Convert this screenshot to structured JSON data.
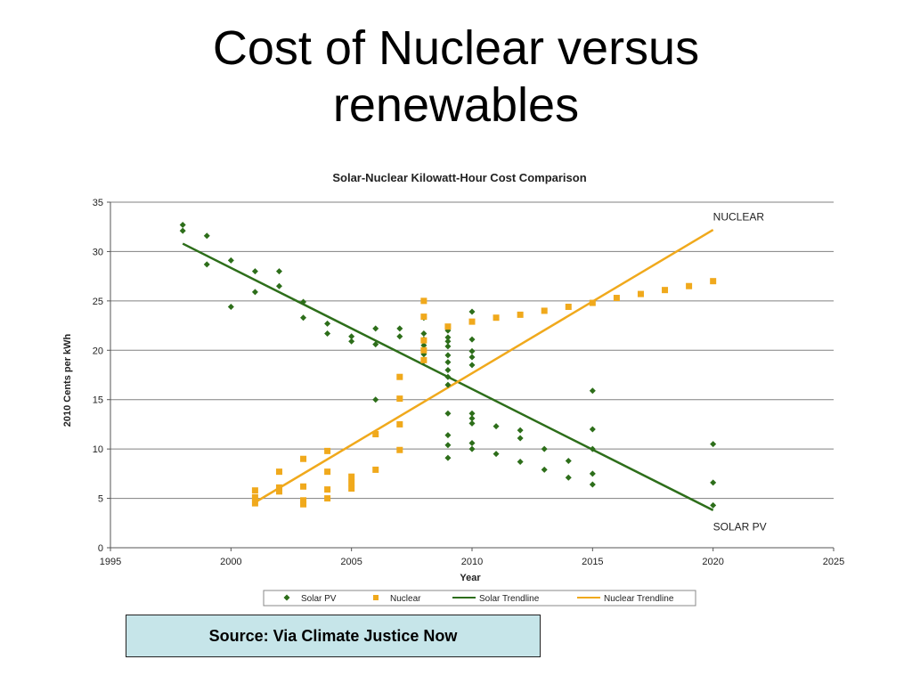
{
  "slide": {
    "title_line1": "Cost of Nuclear versus",
    "title_line2": "renewables",
    "source": "Source: Via Climate Justice Now"
  },
  "colors": {
    "solar": "#2d6e1a",
    "nuclear": "#f0a91c",
    "grid": "#808080",
    "source_box_bg": "#c6e5e9"
  },
  "chart_data": {
    "type": "scatter",
    "title": "Solar-Nuclear Kilowatt-Hour Cost Comparison",
    "xlabel": "Year",
    "ylabel": "2010 Cents per kWh",
    "xlim": [
      1995,
      2025
    ],
    "ylim": [
      0,
      35
    ],
    "xticks": [
      1995,
      2000,
      2005,
      2010,
      2015,
      2020,
      2025
    ],
    "yticks": [
      0,
      5,
      10,
      15,
      20,
      25,
      30,
      35
    ],
    "grid": "horizontal",
    "legend_position": "bottom",
    "annotations": [
      {
        "text": "NUCLEAR",
        "x": 2020,
        "y": 33.5
      },
      {
        "text": "SOLAR PV",
        "x": 2020,
        "y": 2.1
      }
    ],
    "series": [
      {
        "name": "Solar PV",
        "kind": "points",
        "marker": "diamond",
        "color": "#2d6e1a",
        "points": [
          [
            1998,
            32.7
          ],
          [
            1998,
            32.1
          ],
          [
            1999,
            31.6
          ],
          [
            1999,
            28.7
          ],
          [
            2000,
            29.1
          ],
          [
            2000,
            24.4
          ],
          [
            2001,
            28.0
          ],
          [
            2001,
            25.9
          ],
          [
            2002,
            28.0
          ],
          [
            2002,
            26.5
          ],
          [
            2003,
            24.9
          ],
          [
            2003,
            23.3
          ],
          [
            2004,
            22.7
          ],
          [
            2004,
            21.7
          ],
          [
            2005,
            21.4
          ],
          [
            2005,
            20.9
          ],
          [
            2006,
            22.2
          ],
          [
            2006,
            20.6
          ],
          [
            2006,
            15.0
          ],
          [
            2007,
            22.2
          ],
          [
            2007,
            21.4
          ],
          [
            2008,
            23.3
          ],
          [
            2008,
            21.7
          ],
          [
            2008,
            21.1
          ],
          [
            2008,
            20.5
          ],
          [
            2008,
            19.6
          ],
          [
            2008,
            18.9
          ],
          [
            2009,
            22.0
          ],
          [
            2009,
            21.3
          ],
          [
            2009,
            20.9
          ],
          [
            2009,
            20.4
          ],
          [
            2009,
            19.5
          ],
          [
            2009,
            18.8
          ],
          [
            2009,
            18.0
          ],
          [
            2009,
            17.3
          ],
          [
            2009,
            16.5
          ],
          [
            2009,
            13.6
          ],
          [
            2009,
            11.4
          ],
          [
            2009,
            10.4
          ],
          [
            2009,
            9.1
          ],
          [
            2010,
            23.9
          ],
          [
            2010,
            21.1
          ],
          [
            2010,
            19.9
          ],
          [
            2010,
            19.3
          ],
          [
            2010,
            18.5
          ],
          [
            2010,
            13.6
          ],
          [
            2010,
            13.1
          ],
          [
            2010,
            12.6
          ],
          [
            2010,
            10.6
          ],
          [
            2010,
            10.0
          ],
          [
            2011,
            12.3
          ],
          [
            2011,
            9.5
          ],
          [
            2012,
            11.9
          ],
          [
            2012,
            11.1
          ],
          [
            2012,
            8.7
          ],
          [
            2013,
            10.0
          ],
          [
            2013,
            7.9
          ],
          [
            2014,
            8.8
          ],
          [
            2014,
            7.1
          ],
          [
            2015,
            15.9
          ],
          [
            2015,
            12.0
          ],
          [
            2015,
            10.0
          ],
          [
            2015,
            7.5
          ],
          [
            2015,
            6.4
          ],
          [
            2020,
            10.5
          ],
          [
            2020,
            6.6
          ],
          [
            2020,
            4.3
          ]
        ]
      },
      {
        "name": "Nuclear",
        "kind": "points",
        "marker": "square",
        "color": "#f0a91c",
        "points": [
          [
            2001,
            5.8
          ],
          [
            2001,
            5.1
          ],
          [
            2001,
            4.5
          ],
          [
            2002,
            7.7
          ],
          [
            2002,
            6.1
          ],
          [
            2002,
            5.7
          ],
          [
            2003,
            9.0
          ],
          [
            2003,
            6.2
          ],
          [
            2003,
            4.8
          ],
          [
            2003,
            4.4
          ],
          [
            2004,
            9.8
          ],
          [
            2004,
            7.7
          ],
          [
            2004,
            5.9
          ],
          [
            2004,
            5.0
          ],
          [
            2005,
            7.2
          ],
          [
            2005,
            6.6
          ],
          [
            2005,
            6.0
          ],
          [
            2006,
            11.5
          ],
          [
            2006,
            7.9
          ],
          [
            2007,
            17.3
          ],
          [
            2007,
            15.1
          ],
          [
            2007,
            12.5
          ],
          [
            2007,
            9.9
          ],
          [
            2008,
            25.0
          ],
          [
            2008,
            23.4
          ],
          [
            2008,
            21.0
          ],
          [
            2008,
            20.0
          ],
          [
            2008,
            19.0
          ],
          [
            2009,
            22.4
          ],
          [
            2010,
            22.9
          ],
          [
            2011,
            23.3
          ],
          [
            2012,
            23.6
          ],
          [
            2013,
            24.0
          ],
          [
            2014,
            24.4
          ],
          [
            2015,
            24.8
          ],
          [
            2016,
            25.3
          ],
          [
            2017,
            25.7
          ],
          [
            2018,
            26.1
          ],
          [
            2019,
            26.5
          ],
          [
            2020,
            27.0
          ]
        ]
      },
      {
        "name": "Solar Trendline",
        "kind": "line",
        "color": "#2d6e1a",
        "points": [
          [
            1998,
            30.8
          ],
          [
            2020,
            3.8
          ]
        ]
      },
      {
        "name": "Nuclear Trendline",
        "kind": "line",
        "color": "#f0a91c",
        "points": [
          [
            2001,
            4.6
          ],
          [
            2020,
            32.2
          ]
        ]
      }
    ]
  }
}
